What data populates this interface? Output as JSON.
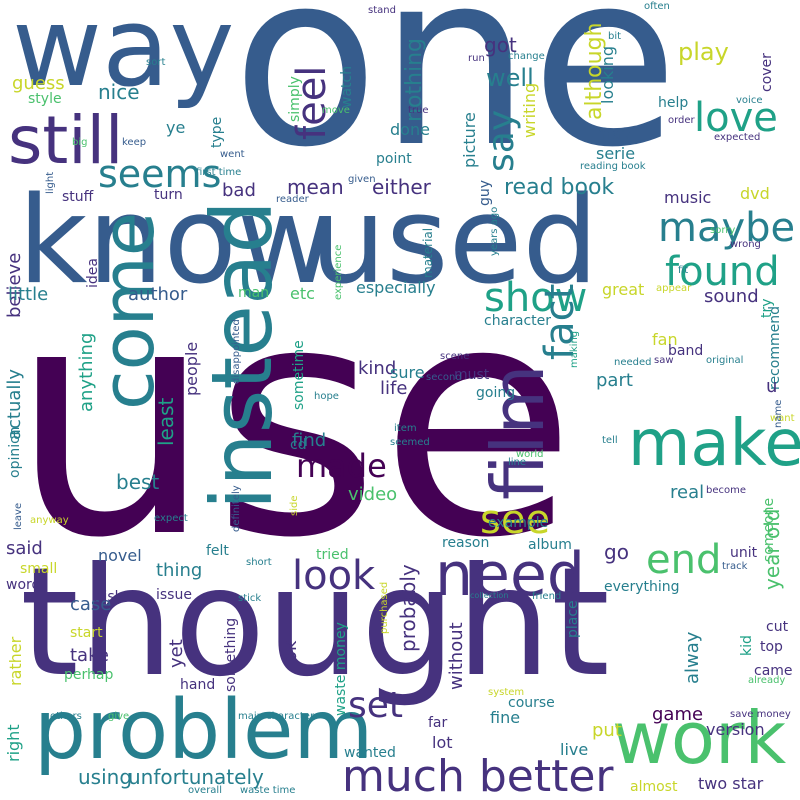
{
  "words": [
    {
      "text": "use"
    },
    {
      "text": "one"
    },
    {
      "text": "thought"
    },
    {
      "text": "know"
    },
    {
      "text": "used"
    },
    {
      "text": "way"
    },
    {
      "text": "problem"
    },
    {
      "text": "instead"
    },
    {
      "text": "film"
    },
    {
      "text": "still"
    },
    {
      "text": "come"
    },
    {
      "text": "make"
    },
    {
      "text": "work"
    },
    {
      "text": "need"
    },
    {
      "text": "much better"
    },
    {
      "text": "maybe"
    },
    {
      "text": "found"
    },
    {
      "text": "seems"
    },
    {
      "text": "love"
    },
    {
      "text": "show"
    },
    {
      "text": "fact"
    },
    {
      "text": "say"
    },
    {
      "text": "feel"
    },
    {
      "text": "see"
    },
    {
      "text": "end"
    },
    {
      "text": "look"
    },
    {
      "text": "made"
    },
    {
      "text": "set"
    },
    {
      "text": "read book"
    },
    {
      "text": "unfortunately"
    },
    {
      "text": "using"
    },
    {
      "text": "play"
    },
    {
      "text": "either"
    },
    {
      "text": "got"
    },
    {
      "text": "well"
    },
    {
      "text": "nothing"
    },
    {
      "text": "although"
    },
    {
      "text": "guess"
    },
    {
      "text": "nice"
    },
    {
      "text": "style"
    },
    {
      "text": "ye"
    },
    {
      "text": "bad"
    },
    {
      "text": "mean"
    },
    {
      "text": "believe"
    },
    {
      "text": "little"
    },
    {
      "text": "author"
    },
    {
      "text": "etc"
    },
    {
      "text": "especially"
    },
    {
      "text": "music"
    },
    {
      "text": "dvd"
    },
    {
      "text": "sound"
    },
    {
      "text": "great"
    },
    {
      "text": "people"
    },
    {
      "text": "kind"
    },
    {
      "text": "sure"
    },
    {
      "text": "life"
    },
    {
      "text": "part"
    },
    {
      "text": "least"
    },
    {
      "text": "anything"
    },
    {
      "text": "actually"
    },
    {
      "text": "find"
    },
    {
      "text": "best"
    },
    {
      "text": "video"
    },
    {
      "text": "real"
    },
    {
      "text": "year old"
    },
    {
      "text": "said"
    },
    {
      "text": "case"
    },
    {
      "text": "novel"
    },
    {
      "text": "thing"
    },
    {
      "text": "go"
    },
    {
      "text": "probably"
    },
    {
      "text": "take"
    },
    {
      "text": "ok"
    },
    {
      "text": "rather"
    },
    {
      "text": "right"
    },
    {
      "text": "yet"
    },
    {
      "text": "without"
    },
    {
      "text": "alway"
    },
    {
      "text": "game"
    },
    {
      "text": "put"
    },
    {
      "text": "version"
    },
    {
      "text": "lot"
    },
    {
      "text": "fine"
    },
    {
      "text": "live"
    },
    {
      "text": "wanted"
    },
    {
      "text": "two star"
    },
    {
      "text": "almost"
    },
    {
      "text": "point"
    },
    {
      "text": "turn"
    },
    {
      "text": "stuff"
    },
    {
      "text": "first time"
    },
    {
      "text": "went"
    },
    {
      "text": "type"
    },
    {
      "text": "done"
    },
    {
      "text": "picture"
    },
    {
      "text": "writing"
    },
    {
      "text": "may"
    },
    {
      "text": "looking"
    },
    {
      "text": "serie"
    },
    {
      "text": "guy"
    },
    {
      "text": "idea"
    },
    {
      "text": "man"
    },
    {
      "text": "character"
    },
    {
      "text": "fan"
    },
    {
      "text": "band"
    },
    {
      "text": "try"
    },
    {
      "text": "recommend"
    },
    {
      "text": "u"
    },
    {
      "text": "help"
    },
    {
      "text": "cover"
    },
    {
      "text": "often"
    },
    {
      "text": "stand"
    },
    {
      "text": "simply"
    },
    {
      "text": "watch"
    },
    {
      "text": "run"
    },
    {
      "text": "change"
    },
    {
      "text": "true"
    },
    {
      "text": "sort"
    },
    {
      "text": "big"
    },
    {
      "text": "keep"
    },
    {
      "text": "light"
    },
    {
      "text": "reader"
    },
    {
      "text": "given"
    },
    {
      "text": "move"
    },
    {
      "text": "bit"
    },
    {
      "text": "voice"
    },
    {
      "text": "order"
    },
    {
      "text": "expected"
    },
    {
      "text": "reading book"
    },
    {
      "text": "material"
    },
    {
      "text": "years ago"
    },
    {
      "text": "experience"
    },
    {
      "text": "sorry"
    },
    {
      "text": "wrong"
    },
    {
      "text": "fit"
    },
    {
      "text": "appear"
    },
    {
      "text": "sometime"
    },
    {
      "text": "disappointed"
    },
    {
      "text": "hope"
    },
    {
      "text": "scene"
    },
    {
      "text": "must"
    },
    {
      "text": "going"
    },
    {
      "text": "making"
    },
    {
      "text": "needed"
    },
    {
      "text": "saw"
    },
    {
      "text": "original"
    },
    {
      "text": "second"
    },
    {
      "text": "cd"
    },
    {
      "text": "item"
    },
    {
      "text": "seemed"
    },
    {
      "text": "world"
    },
    {
      "text": "line"
    },
    {
      "text": "tell"
    },
    {
      "text": "want"
    },
    {
      "text": "name"
    },
    {
      "text": "become"
    },
    {
      "text": "opinion"
    },
    {
      "text": "anyway"
    },
    {
      "text": "leave"
    },
    {
      "text": "expect"
    },
    {
      "text": "short"
    },
    {
      "text": "definitely"
    },
    {
      "text": "felt"
    },
    {
      "text": "side"
    },
    {
      "text": "example"
    },
    {
      "text": "reason"
    },
    {
      "text": "album"
    },
    {
      "text": "unit"
    },
    {
      "text": "someone"
    },
    {
      "text": "track"
    },
    {
      "text": "tried"
    },
    {
      "text": "small"
    },
    {
      "text": "word"
    },
    {
      "text": "wish"
    },
    {
      "text": "issue"
    },
    {
      "text": "stick"
    },
    {
      "text": "purchased"
    },
    {
      "text": "collection"
    },
    {
      "text": "friend"
    },
    {
      "text": "everything"
    },
    {
      "text": "place"
    },
    {
      "text": "cut"
    },
    {
      "text": "top"
    },
    {
      "text": "kid"
    },
    {
      "text": "came"
    },
    {
      "text": "already"
    },
    {
      "text": "start"
    },
    {
      "text": "perhap"
    },
    {
      "text": "hand"
    },
    {
      "text": "something"
    },
    {
      "text": "waste money"
    },
    {
      "text": "system"
    },
    {
      "text": "course"
    },
    {
      "text": "far"
    },
    {
      "text": "save money"
    },
    {
      "text": "others"
    },
    {
      "text": "give"
    },
    {
      "text": "main character"
    },
    {
      "text": "overall"
    },
    {
      "text": "waste time"
    }
  ]
}
